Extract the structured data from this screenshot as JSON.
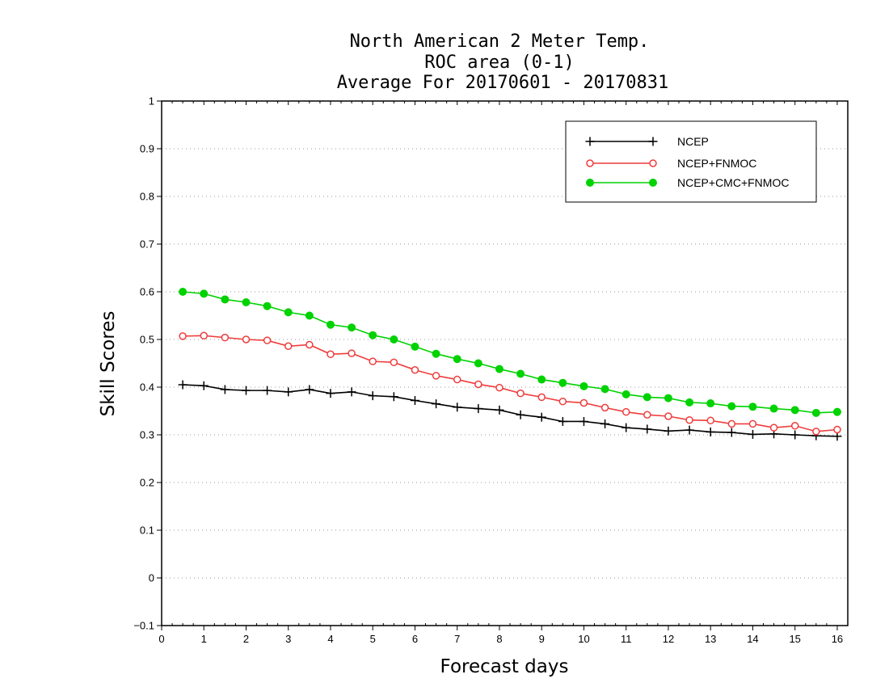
{
  "chart_data": {
    "type": "line",
    "title": [
      "North American 2 Meter Temp.",
      "ROC area (0-1)",
      "Average For 20170601 - 20170831"
    ],
    "xlabel": "Forecast days",
    "ylabel": "Skill Scores",
    "xlim": [
      0,
      16.25
    ],
    "ylim": [
      -0.1,
      1
    ],
    "xticks": [
      0,
      1,
      2,
      3,
      4,
      5,
      6,
      7,
      8,
      9,
      10,
      11,
      12,
      13,
      14,
      15,
      16
    ],
    "yticks": [
      -0.1,
      0,
      0.1,
      0.2,
      0.3,
      0.4,
      0.5,
      0.6,
      0.7,
      0.8,
      0.9,
      1
    ],
    "ytick_labels": [
      "−0.1",
      "0",
      "0.1",
      "0.2",
      "0.3",
      "0.4",
      "0.5",
      "0.6",
      "0.7",
      "0.8",
      "0.9",
      "1"
    ],
    "grid": "horizontal dotted",
    "legend_position": "top-right",
    "x": [
      0.5,
      1,
      1.5,
      2,
      2.5,
      3,
      3.5,
      4,
      4.5,
      5,
      5.5,
      6,
      6.5,
      7,
      7.5,
      8,
      8.5,
      9,
      9.5,
      10,
      10.5,
      11,
      11.5,
      12,
      12.5,
      13,
      13.5,
      14,
      14.5,
      15,
      15.5,
      16
    ],
    "series": [
      {
        "name": "NCEP",
        "color": "#000000",
        "marker": "plus",
        "values": [
          0.405,
          0.403,
          0.395,
          0.393,
          0.393,
          0.39,
          0.395,
          0.387,
          0.39,
          0.382,
          0.38,
          0.372,
          0.365,
          0.358,
          0.355,
          0.352,
          0.342,
          0.337,
          0.328,
          0.328,
          0.323,
          0.315,
          0.312,
          0.308,
          0.31,
          0.306,
          0.305,
          0.301,
          0.302,
          0.3,
          0.298,
          0.297
        ]
      },
      {
        "name": "NCEP+FNMOC",
        "color": "#f03c3c",
        "marker": "open-circle",
        "values": [
          0.507,
          0.508,
          0.504,
          0.5,
          0.498,
          0.486,
          0.489,
          0.469,
          0.471,
          0.454,
          0.452,
          0.436,
          0.424,
          0.416,
          0.406,
          0.399,
          0.387,
          0.379,
          0.37,
          0.367,
          0.357,
          0.348,
          0.342,
          0.339,
          0.331,
          0.33,
          0.323,
          0.323,
          0.315,
          0.319,
          0.307,
          0.311
        ]
      },
      {
        "name": "NCEP+CMC+FNMOC",
        "color": "#00d200",
        "marker": "filled-circle",
        "values": [
          0.6,
          0.596,
          0.584,
          0.578,
          0.57,
          0.557,
          0.55,
          0.531,
          0.525,
          0.509,
          0.5,
          0.485,
          0.47,
          0.459,
          0.45,
          0.438,
          0.428,
          0.416,
          0.409,
          0.402,
          0.396,
          0.385,
          0.379,
          0.377,
          0.368,
          0.366,
          0.36,
          0.359,
          0.355,
          0.352,
          0.346,
          0.348
        ]
      }
    ]
  }
}
